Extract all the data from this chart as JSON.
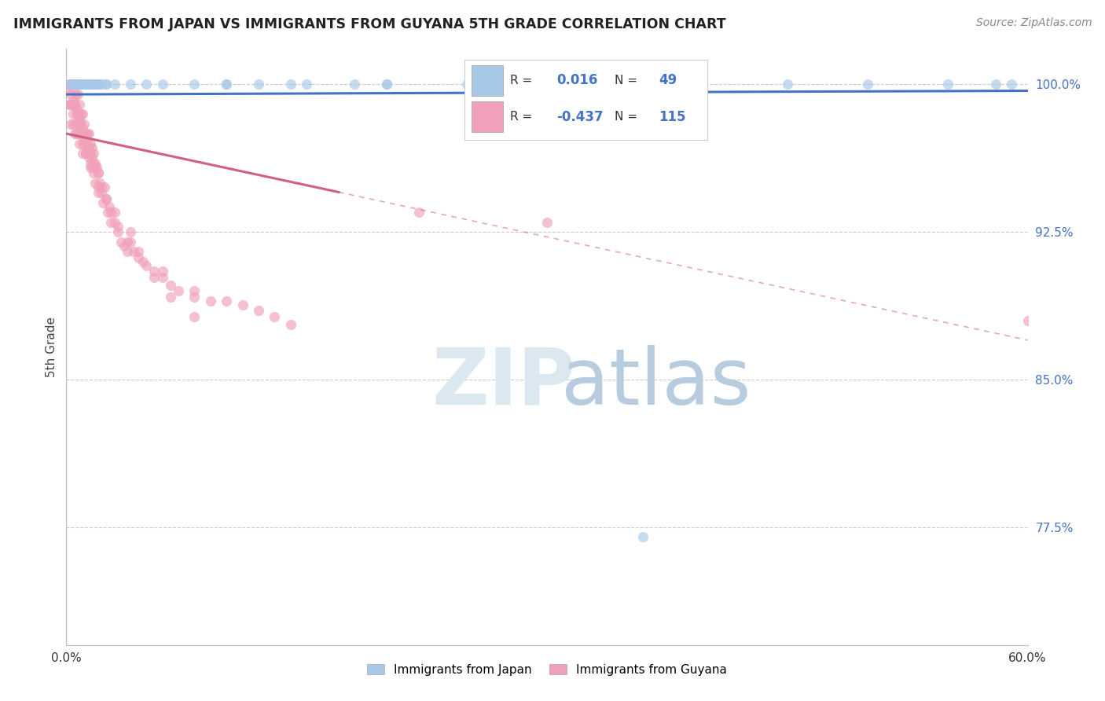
{
  "title": "IMMIGRANTS FROM JAPAN VS IMMIGRANTS FROM GUYANA 5TH GRADE CORRELATION CHART",
  "source": "Source: ZipAtlas.com",
  "ylabel": "5th Grade",
  "ytick_labels": [
    "100.0%",
    "92.5%",
    "85.0%",
    "77.5%"
  ],
  "ytick_values": [
    1.0,
    0.925,
    0.85,
    0.775
  ],
  "xlim": [
    0.0,
    0.6
  ],
  "ylim": [
    0.715,
    1.018
  ],
  "legend_japan_R": "0.016",
  "legend_japan_N": "49",
  "legend_guyana_R": "-0.437",
  "legend_guyana_N": "115",
  "japan_color": "#a8c8e8",
  "guyana_color": "#f0a0b8",
  "japan_line_color": "#4472C4",
  "guyana_line_color": "#d06080",
  "guyana_line_solid_end": 0.17,
  "watermark_zip": "ZIP",
  "watermark_atlas": "atlas",
  "background_color": "#ffffff",
  "grid_color": "#cccccc",
  "japan_x": [
    0.003,
    0.004,
    0.005,
    0.006,
    0.007,
    0.008,
    0.009,
    0.01,
    0.011,
    0.012,
    0.013,
    0.014,
    0.015,
    0.016,
    0.017,
    0.018,
    0.019,
    0.02,
    0.022,
    0.025,
    0.1,
    0.12,
    0.14,
    0.18,
    0.2,
    0.25,
    0.3,
    0.35,
    0.45,
    0.5,
    0.55,
    0.58,
    0.59,
    0.003,
    0.005,
    0.008,
    0.012,
    0.016,
    0.02,
    0.025,
    0.03,
    0.04,
    0.05,
    0.06,
    0.08,
    0.1,
    0.15,
    0.2,
    0.36
  ],
  "japan_y": [
    1.0,
    1.0,
    1.0,
    1.0,
    1.0,
    1.0,
    1.0,
    1.0,
    1.0,
    1.0,
    1.0,
    1.0,
    1.0,
    1.0,
    1.0,
    1.0,
    1.0,
    1.0,
    1.0,
    1.0,
    1.0,
    1.0,
    1.0,
    1.0,
    1.0,
    1.0,
    1.0,
    1.0,
    1.0,
    1.0,
    1.0,
    1.0,
    1.0,
    1.0,
    1.0,
    1.0,
    1.0,
    1.0,
    1.0,
    1.0,
    1.0,
    1.0,
    1.0,
    1.0,
    1.0,
    1.0,
    1.0,
    1.0,
    0.77
  ],
  "guyana_x": [
    0.002,
    0.002,
    0.003,
    0.003,
    0.003,
    0.004,
    0.004,
    0.004,
    0.005,
    0.005,
    0.005,
    0.006,
    0.006,
    0.006,
    0.007,
    0.007,
    0.007,
    0.008,
    0.008,
    0.008,
    0.009,
    0.009,
    0.01,
    0.01,
    0.01,
    0.011,
    0.011,
    0.012,
    0.012,
    0.013,
    0.013,
    0.014,
    0.014,
    0.015,
    0.015,
    0.016,
    0.016,
    0.017,
    0.017,
    0.018,
    0.018,
    0.019,
    0.02,
    0.02,
    0.021,
    0.022,
    0.023,
    0.024,
    0.025,
    0.026,
    0.027,
    0.028,
    0.03,
    0.032,
    0.034,
    0.036,
    0.038,
    0.04,
    0.042,
    0.045,
    0.048,
    0.05,
    0.055,
    0.06,
    0.065,
    0.07,
    0.08,
    0.09,
    0.1,
    0.11,
    0.12,
    0.13,
    0.14,
    0.002,
    0.003,
    0.004,
    0.005,
    0.006,
    0.007,
    0.008,
    0.009,
    0.01,
    0.011,
    0.012,
    0.013,
    0.014,
    0.015,
    0.016,
    0.017,
    0.018,
    0.02,
    0.022,
    0.025,
    0.028,
    0.032,
    0.038,
    0.045,
    0.055,
    0.065,
    0.08,
    0.003,
    0.004,
    0.006,
    0.008,
    0.01,
    0.012,
    0.015,
    0.02,
    0.03,
    0.04,
    0.06,
    0.08,
    0.22,
    0.3,
    0.6
  ],
  "guyana_y": [
    1.0,
    0.99,
    1.0,
    0.99,
    0.98,
    1.0,
    0.99,
    0.98,
    1.0,
    0.99,
    0.975,
    0.995,
    0.985,
    0.975,
    0.995,
    0.985,
    0.975,
    0.99,
    0.98,
    0.97,
    0.985,
    0.975,
    0.985,
    0.975,
    0.965,
    0.98,
    0.97,
    0.975,
    0.965,
    0.975,
    0.965,
    0.975,
    0.963,
    0.97,
    0.96,
    0.968,
    0.958,
    0.965,
    0.955,
    0.96,
    0.95,
    0.958,
    0.955,
    0.945,
    0.95,
    0.945,
    0.94,
    0.948,
    0.942,
    0.935,
    0.938,
    0.93,
    0.93,
    0.925,
    0.92,
    0.918,
    0.915,
    0.92,
    0.915,
    0.915,
    0.91,
    0.908,
    0.905,
    0.902,
    0.898,
    0.895,
    0.895,
    0.89,
    0.89,
    0.888,
    0.885,
    0.882,
    0.878,
    0.998,
    0.995,
    0.992,
    0.99,
    0.988,
    0.985,
    0.982,
    0.98,
    0.978,
    0.975,
    0.972,
    0.97,
    0.968,
    0.965,
    0.963,
    0.96,
    0.958,
    0.955,
    0.948,
    0.942,
    0.935,
    0.928,
    0.92,
    0.912,
    0.902,
    0.892,
    0.882,
    0.99,
    0.985,
    0.98,
    0.975,
    0.97,
    0.965,
    0.958,
    0.948,
    0.935,
    0.925,
    0.905,
    0.892,
    0.935,
    0.93,
    0.88
  ]
}
